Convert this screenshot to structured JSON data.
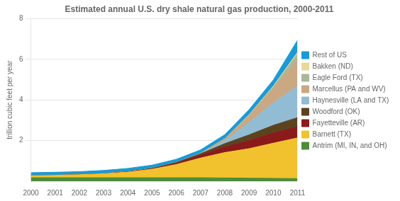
{
  "chart_data": {
    "type": "area",
    "title": "Estimated annual U.S. dry shale natural gas production, 2000-2011",
    "ylabel": "trillion cubic feet per year",
    "x": [
      2000,
      2001,
      2002,
      2003,
      2004,
      2005,
      2006,
      2007,
      2008,
      2009,
      2010,
      2011
    ],
    "xlim": [
      2000,
      2011
    ],
    "xticks": [
      2000,
      2001,
      2002,
      2003,
      2004,
      2005,
      2006,
      2007,
      2008,
      2009,
      2010,
      2011
    ],
    "ylim": [
      0,
      8
    ],
    "yticks": [
      2,
      4,
      6,
      8
    ],
    "stacked": true,
    "grid": "y",
    "legend": "right",
    "series": [
      {
        "name": "Antrim (MI, IN, and OH)",
        "color": "#4e8c3a",
        "values": [
          0.17,
          0.17,
          0.17,
          0.17,
          0.17,
          0.17,
          0.17,
          0.17,
          0.16,
          0.15,
          0.14,
          0.13
        ]
      },
      {
        "name": "Barnett (TX)",
        "color": "#f2c12e",
        "values": [
          0.1,
          0.12,
          0.15,
          0.2,
          0.28,
          0.42,
          0.65,
          0.97,
          1.25,
          1.45,
          1.73,
          2.0
        ]
      },
      {
        "name": "Fayetteville (AR)",
        "color": "#8b1a1a",
        "values": [
          0.0,
          0.0,
          0.0,
          0.0,
          0.01,
          0.02,
          0.06,
          0.13,
          0.27,
          0.4,
          0.5,
          0.55
        ]
      },
      {
        "name": "Woodford (OK)",
        "color": "#5c4320",
        "values": [
          0.0,
          0.0,
          0.0,
          0.0,
          0.01,
          0.02,
          0.04,
          0.08,
          0.17,
          0.28,
          0.38,
          0.45
        ]
      },
      {
        "name": "Haynesville (LA and TX)",
        "color": "#92bcd4",
        "values": [
          0.0,
          0.0,
          0.0,
          0.0,
          0.0,
          0.0,
          0.0,
          0.0,
          0.12,
          0.6,
          1.1,
          1.55
        ]
      },
      {
        "name": "Marcellus (PA and WV)",
        "color": "#c9a882",
        "values": [
          0.0,
          0.0,
          0.0,
          0.0,
          0.0,
          0.0,
          0.0,
          0.02,
          0.11,
          0.35,
          0.7,
          1.3
        ]
      },
      {
        "name": "Eagle Ford (TX)",
        "color": "#a8b89a",
        "values": [
          0.0,
          0.0,
          0.0,
          0.0,
          0.0,
          0.0,
          0.0,
          0.0,
          0.0,
          0.02,
          0.09,
          0.28
        ]
      },
      {
        "name": "Bakken (ND)",
        "color": "#e8d89a",
        "values": [
          0.0,
          0.0,
          0.0,
          0.0,
          0.0,
          0.0,
          0.0,
          0.0,
          0.01,
          0.02,
          0.04,
          0.08
        ]
      },
      {
        "name": "Rest of US",
        "color": "#1b9ad6",
        "values": [
          0.15,
          0.15,
          0.15,
          0.16,
          0.16,
          0.16,
          0.16,
          0.17,
          0.2,
          0.25,
          0.3,
          0.6
        ]
      }
    ]
  }
}
